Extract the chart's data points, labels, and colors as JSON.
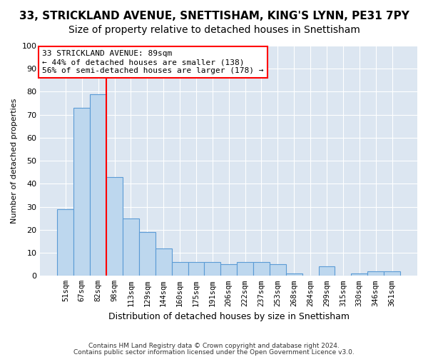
{
  "title": "33, STRICKLAND AVENUE, SNETTISHAM, KING'S LYNN, PE31 7PY",
  "subtitle": "Size of property relative to detached houses in Snettisham",
  "xlabel": "Distribution of detached houses by size in Snettisham",
  "ylabel": "Number of detached properties",
  "bar_values": [
    29,
    73,
    79,
    43,
    25,
    19,
    12,
    6,
    6,
    6,
    5,
    6,
    6,
    5,
    1,
    0,
    4,
    0,
    1,
    2,
    2
  ],
  "bar_labels": [
    "51sqm",
    "67sqm",
    "82sqm",
    "98sqm",
    "113sqm",
    "129sqm",
    "144sqm",
    "160sqm",
    "175sqm",
    "191sqm",
    "206sqm",
    "222sqm",
    "237sqm",
    "253sqm",
    "268sqm",
    "284sqm",
    "299sqm",
    "315sqm",
    "330sqm",
    "346sqm",
    "361sqm"
  ],
  "bar_color": "#bdd7ee",
  "bar_edge_color": "#5b9bd5",
  "vline_x": 2.5,
  "property_sqm": 89,
  "annotation_text": "33 STRICKLAND AVENUE: 89sqm\n← 44% of detached houses are smaller (138)\n56% of semi-detached houses are larger (178) →",
  "annotation_box_color": "white",
  "annotation_box_edge": "red",
  "vline_color": "red",
  "ylim": [
    0,
    100
  ],
  "yticks": [
    0,
    10,
    20,
    30,
    40,
    50,
    60,
    70,
    80,
    90,
    100
  ],
  "plot_bg": "#dce6f1",
  "grid_color": "white",
  "footer1": "Contains HM Land Registry data © Crown copyright and database right 2024.",
  "footer2": "Contains public sector information licensed under the Open Government Licence v3.0.",
  "title_fontsize": 11,
  "subtitle_fontsize": 10
}
